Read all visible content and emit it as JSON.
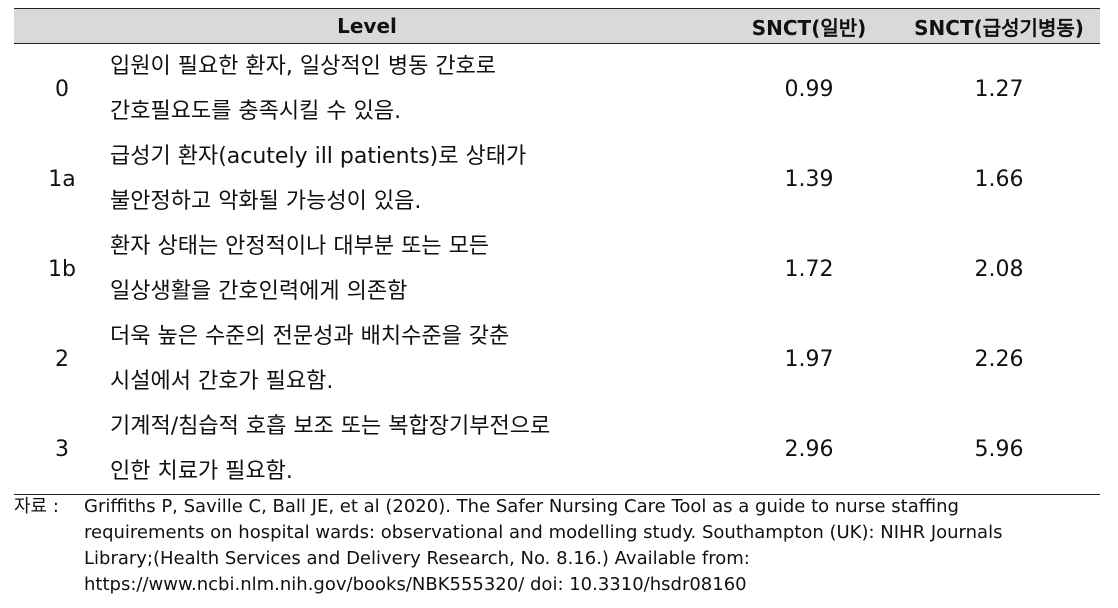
{
  "table": {
    "headers": {
      "level": "Level",
      "general": "SNCT(일반)",
      "acute": "SNCT(급성기병동)"
    },
    "rows": [
      {
        "level": "0",
        "desc_line1": "입원이 필요한 환자, 일상적인 병동 간호로",
        "desc_line2": "간호필요도를 충족시킬 수 있음.",
        "general": "0.99",
        "acute": "1.27"
      },
      {
        "level": "1a",
        "desc_line1": "급성기 환자(acutely ill patients)로 상태가",
        "desc_line2": "불안정하고 악화될 가능성이 있음.",
        "general": "1.39",
        "acute": "1.66"
      },
      {
        "level": "1b",
        "desc_line1": "환자 상태는 안정적이나 대부분 또는 모든",
        "desc_line2": "일상생활을 간호인력에게 의존함",
        "general": "1.72",
        "acute": "2.08"
      },
      {
        "level": "2",
        "desc_line1": "더욱 높은 수준의 전문성과 배치수준을 갖춘",
        "desc_line2": "시설에서 간호가 필요함.",
        "general": "1.97",
        "acute": "2.26"
      },
      {
        "level": "3",
        "desc_line1": "기계적/침습적 호흡 보조 또는 복합장기부전으로",
        "desc_line2": "인한 치료가 필요함.",
        "general": "2.96",
        "acute": "5.96"
      }
    ]
  },
  "footnote": {
    "label": "자료 :",
    "line1": "Griffiths P, Saville C, Ball JE, et al (2020). The Safer Nursing Care Tool as a guide to nurse staffing",
    "line2": "requirements on hospital wards: observational and modelling study. Southampton (UK): NIHR Journals",
    "line3": "Library;(Health Services and Delivery Research, No. 8.16.) Available from:",
    "line4": "https://www.ncbi.nlm.nih.gov/books/NBK555320/  doi: 10.3310/hsdr08160"
  }
}
